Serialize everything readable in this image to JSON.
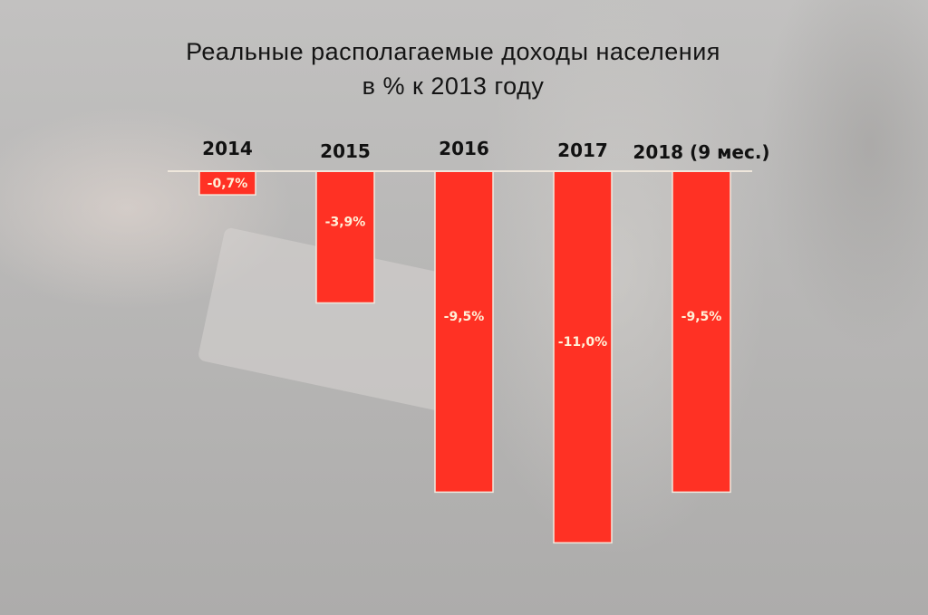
{
  "chart_data": {
    "type": "bar",
    "title": "Реальные располагаемые доходы населения",
    "subtitle": "в % к 2013 году",
    "categories": [
      "2014",
      "2015",
      "2016",
      "2017",
      "2018 (9 мес.)"
    ],
    "values": [
      -0.7,
      -3.9,
      -9.5,
      -11.0,
      -9.5
    ],
    "value_labels": [
      "-0,7%",
      "-3,9%",
      "-9,5%",
      "-11,0%",
      "-9,5%"
    ],
    "xlabel": "",
    "ylabel": "",
    "ylim": [
      -11.0,
      0
    ],
    "grid": false,
    "legend": "none",
    "bar_color": "#ff3124",
    "label_color": "#fff1d8"
  }
}
